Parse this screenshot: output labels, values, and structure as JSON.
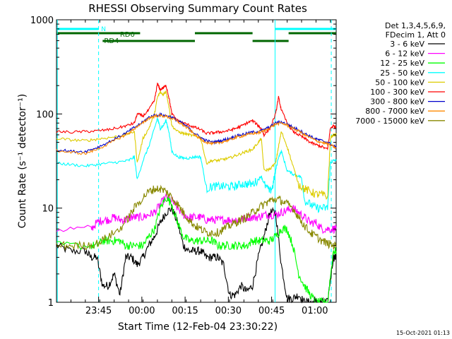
{
  "chart_data": {
    "type": "line",
    "title": "RHESSI Observing Summary Count Rates",
    "xlabel": "Start Time (12-Feb-04 23:30:22)",
    "ylabel": "Count Rate (s⁻¹ detector⁻¹)",
    "yscale": "log",
    "ylim": [
      1,
      1000
    ],
    "xlim_minutes": [
      0,
      97
    ],
    "x_unit": "minutes since 12-Feb-04 23:30:22",
    "grid": false,
    "x_ticks": [
      {
        "label": "23:45",
        "value": 14.6
      },
      {
        "label": "00:00",
        "value": 29.6
      },
      {
        "label": "00:15",
        "value": 44.6
      },
      {
        "label": "00:30",
        "value": 59.6
      },
      {
        "label": "00:45",
        "value": 74.6
      },
      {
        "label": "01:00",
        "value": 89.6
      }
    ],
    "y_ticks": [
      {
        "label": "1",
        "value": 1
      },
      {
        "label": "10",
        "value": 10
      },
      {
        "label": "100",
        "value": 100
      },
      {
        "label": "1000",
        "value": 1000
      }
    ],
    "legend_header": [
      "Det 1,3,4,5,6,9,",
      "FDecim 1, Att 0"
    ],
    "legend_placement": "right",
    "series": [
      {
        "name": "3 - 6 keV",
        "color": "#000000",
        "x": [
          0,
          5,
          10,
          12,
          14,
          16,
          18,
          20,
          22,
          24,
          26,
          28,
          30,
          32,
          34,
          36,
          38,
          40,
          42,
          44,
          46,
          48,
          50,
          52,
          54,
          56,
          58,
          60,
          62,
          64,
          66,
          68,
          70,
          72,
          74,
          76,
          78,
          80,
          82,
          84,
          86,
          88,
          90,
          92,
          94,
          96,
          97
        ],
        "values": [
          4,
          3.5,
          3.5,
          3,
          3,
          1.5,
          1.5,
          2,
          1.2,
          3,
          3,
          2.5,
          3,
          4,
          5,
          7,
          9,
          10,
          7,
          4,
          3.5,
          3.5,
          3.5,
          3,
          3,
          3,
          2.5,
          1.2,
          1.2,
          1.5,
          1.3,
          1.5,
          3,
          5,
          9,
          9,
          2.5,
          1.1,
          1.1,
          1.2,
          1,
          1,
          1,
          1,
          1,
          3,
          3
        ]
      },
      {
        "name": "6 - 12 keV",
        "color": "#ff00ff",
        "x": [
          0,
          12,
          14,
          16,
          18,
          20,
          22,
          24,
          26,
          28,
          30,
          32,
          34,
          36,
          38,
          40,
          42,
          44,
          46,
          48,
          50,
          52,
          54,
          56,
          58,
          60,
          62,
          64,
          66,
          68,
          70,
          72,
          74,
          76,
          78,
          80,
          82,
          84,
          86,
          88,
          90,
          92,
          94,
          96,
          97
        ],
        "values": [
          6,
          6,
          7,
          7.5,
          7.5,
          8,
          7.5,
          7.5,
          8,
          8,
          8,
          8.5,
          9,
          11,
          13,
          12,
          10,
          8.5,
          8,
          8,
          8,
          7.5,
          7.5,
          7.5,
          7.5,
          7.5,
          7.5,
          7.5,
          8,
          8,
          8,
          8.5,
          8.5,
          8.5,
          9,
          9.5,
          10,
          9,
          8,
          7,
          7,
          6,
          6,
          6,
          6
        ]
      },
      {
        "name": "12 - 25 keV",
        "color": "#00ff00",
        "x": [
          0,
          12,
          14,
          16,
          18,
          20,
          22,
          24,
          26,
          28,
          30,
          32,
          34,
          36,
          38,
          40,
          42,
          44,
          46,
          48,
          50,
          52,
          54,
          56,
          58,
          60,
          62,
          64,
          66,
          68,
          70,
          72,
          74,
          76,
          78,
          80,
          82,
          84,
          86,
          88,
          90,
          92,
          94,
          96,
          97
        ],
        "values": [
          4,
          4,
          4,
          4.5,
          4.5,
          4.5,
          4.5,
          4,
          4,
          4,
          4,
          5,
          6,
          10,
          13,
          11,
          7,
          5,
          4.5,
          4.5,
          4.5,
          4.5,
          4.5,
          4,
          4,
          4,
          4,
          4,
          4,
          4.5,
          4.5,
          4.5,
          4.5,
          5,
          6,
          6,
          4,
          2,
          1.5,
          1.2,
          1,
          1,
          1,
          3.5,
          3.5
        ]
      },
      {
        "name": "25 - 50 keV",
        "color": "#00ffff",
        "x": [
          0,
          5,
          10,
          14,
          18,
          22,
          25,
          27,
          28,
          30,
          32,
          34,
          35,
          36,
          37,
          38,
          39,
          40,
          42,
          44,
          46,
          48,
          50,
          52,
          54,
          56,
          58,
          60,
          62,
          64,
          66,
          68,
          70,
          71,
          72,
          74,
          75,
          76,
          77,
          78,
          80,
          82,
          84,
          85,
          86,
          88,
          90,
          92,
          94,
          95,
          96,
          97
        ],
        "values": [
          30,
          29,
          28,
          29,
          30,
          31,
          32,
          35,
          20,
          32,
          45,
          70,
          90,
          70,
          75,
          85,
          65,
          40,
          35,
          34,
          34,
          35,
          35,
          16,
          17,
          17,
          17,
          17,
          17,
          18,
          18,
          18,
          20,
          22,
          18,
          15,
          17,
          25,
          35,
          40,
          25,
          23,
          22,
          21,
          12,
          11,
          10,
          10,
          10,
          30,
          32,
          32
        ]
      },
      {
        "name": "50 - 100 keV",
        "color": "#ddcc00",
        "x": [
          0,
          5,
          10,
          14,
          18,
          22,
          25,
          27,
          28,
          30,
          32,
          34,
          35,
          36,
          37,
          38,
          39,
          40,
          42,
          44,
          46,
          48,
          50,
          52,
          54,
          56,
          58,
          60,
          62,
          64,
          66,
          68,
          70,
          71,
          72,
          74,
          76,
          77,
          78,
          80,
          82,
          84,
          86,
          88,
          90,
          92,
          94,
          95,
          96,
          97
        ],
        "values": [
          55,
          53,
          52,
          54,
          56,
          58,
          62,
          65,
          30,
          55,
          70,
          100,
          150,
          170,
          160,
          175,
          120,
          75,
          65,
          62,
          60,
          58,
          56,
          30,
          32,
          32,
          33,
          34,
          36,
          38,
          40,
          42,
          50,
          55,
          25,
          26,
          30,
          45,
          65,
          45,
          28,
          18,
          16,
          15,
          14,
          14,
          13,
          55,
          60,
          60
        ]
      },
      {
        "name": "100 - 300 keV",
        "color": "#ff0000",
        "x": [
          0,
          5,
          10,
          14,
          18,
          22,
          25,
          27,
          28,
          30,
          32,
          34,
          35,
          36,
          37,
          38,
          39,
          40,
          42,
          44,
          46,
          48,
          50,
          52,
          54,
          56,
          58,
          60,
          62,
          64,
          66,
          68,
          70,
          71,
          72,
          74,
          76,
          77,
          78,
          80,
          82,
          84,
          86,
          88,
          90,
          92,
          94,
          95,
          96,
          97
        ],
        "values": [
          65,
          64,
          65,
          66,
          68,
          72,
          76,
          80,
          100,
          95,
          110,
          140,
          210,
          180,
          190,
          200,
          150,
          100,
          85,
          80,
          76,
          72,
          68,
          62,
          63,
          64,
          65,
          67,
          70,
          74,
          80,
          85,
          75,
          70,
          60,
          70,
          100,
          150,
          110,
          80,
          65,
          60,
          55,
          50,
          47,
          45,
          42,
          70,
          75,
          72
        ]
      },
      {
        "name": "300 - 800 keV",
        "color": "#0000cc",
        "x": [
          0,
          5,
          10,
          14,
          18,
          22,
          25,
          27,
          30,
          32,
          34,
          36,
          38,
          40,
          42,
          44,
          46,
          48,
          50,
          52,
          54,
          56,
          58,
          60,
          62,
          64,
          66,
          68,
          70,
          72,
          74,
          76,
          78,
          80,
          82,
          84,
          86,
          88,
          90,
          92,
          94,
          96,
          97
        ],
        "values": [
          42,
          40,
          40,
          44,
          50,
          58,
          65,
          72,
          82,
          92,
          97,
          98,
          96,
          92,
          85,
          78,
          70,
          62,
          56,
          52,
          50,
          51,
          53,
          55,
          58,
          60,
          62,
          64,
          65,
          68,
          73,
          80,
          82,
          78,
          72,
          68,
          62,
          58,
          54,
          52,
          50,
          46,
          44
        ]
      },
      {
        "name": "800 - 7000 keV",
        "color": "#ff8800",
        "x": [
          0,
          5,
          10,
          14,
          18,
          22,
          25,
          27,
          30,
          32,
          34,
          36,
          38,
          40,
          42,
          44,
          46,
          48,
          50,
          52,
          54,
          56,
          58,
          60,
          62,
          64,
          66,
          68,
          70,
          72,
          74,
          76,
          78,
          80,
          82,
          84,
          86,
          88,
          90,
          92,
          94,
          96,
          97
        ],
        "values": [
          41,
          39,
          38,
          42,
          48,
          56,
          62,
          70,
          80,
          90,
          95,
          96,
          94,
          90,
          83,
          76,
          68,
          60,
          54,
          50,
          48,
          49,
          51,
          53,
          56,
          58,
          60,
          62,
          63,
          66,
          71,
          78,
          80,
          76,
          70,
          66,
          60,
          56,
          52,
          50,
          48,
          45,
          43
        ]
      },
      {
        "name": "7000 - 15000 keV",
        "color": "#888800",
        "x": [
          0,
          5,
          10,
          14,
          18,
          22,
          25,
          27,
          30,
          32,
          34,
          36,
          38,
          40,
          42,
          44,
          46,
          48,
          50,
          52,
          54,
          56,
          58,
          60,
          62,
          64,
          66,
          68,
          70,
          72,
          74,
          76,
          78,
          80,
          82,
          84,
          86,
          88,
          90,
          92,
          94,
          96,
          97
        ],
        "values": [
          4,
          4,
          4,
          4.2,
          5,
          6,
          8,
          10,
          13,
          15,
          16,
          16,
          15,
          13,
          11,
          9,
          7.5,
          6.5,
          6,
          5.5,
          5.5,
          5.5,
          6,
          6.5,
          7,
          7.5,
          8,
          9,
          10,
          11,
          12,
          12.5,
          12,
          11,
          10,
          8,
          6.5,
          5.5,
          5,
          4.5,
          4.2,
          4,
          4
        ]
      }
    ],
    "annotations": {
      "bar_labels": [
        "N",
        "RD0",
        "RD4"
      ],
      "bar_colors": {
        "N": "#00ffff",
        "RD0": "#006600",
        "RD4": "#006600"
      },
      "footer_date": "15-Oct-2021 01:13"
    }
  }
}
